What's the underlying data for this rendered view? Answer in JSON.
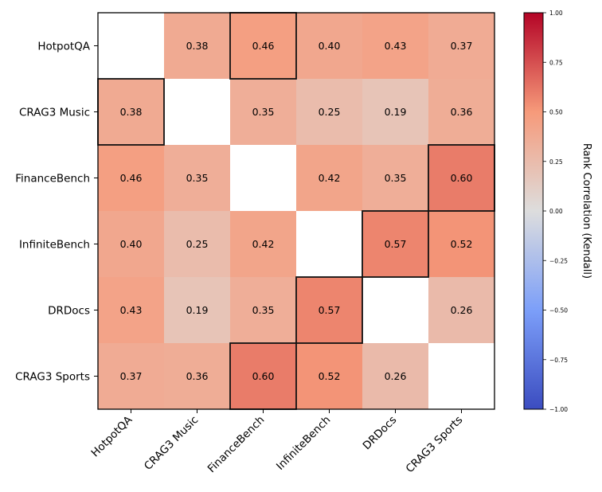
{
  "chart_data": {
    "type": "heatmap",
    "rows": [
      "HotpotQA",
      "CRAG3 Music",
      "FinanceBench",
      "InfiniteBench",
      "DRDocs",
      "CRAG3 Sports"
    ],
    "columns": [
      "HotpotQA",
      "CRAG3 Music",
      "FinanceBench",
      "InfiniteBench",
      "DRDocs",
      "CRAG3 Sports"
    ],
    "values": [
      [
        null,
        0.38,
        0.46,
        0.4,
        0.43,
        0.37
      ],
      [
        0.38,
        null,
        0.35,
        0.25,
        0.19,
        0.36
      ],
      [
        0.46,
        0.35,
        null,
        0.42,
        0.35,
        0.6
      ],
      [
        0.4,
        0.25,
        0.42,
        null,
        0.57,
        0.52
      ],
      [
        0.43,
        0.19,
        0.35,
        0.57,
        null,
        0.26
      ],
      [
        0.37,
        0.36,
        0.6,
        0.52,
        0.26,
        null
      ]
    ],
    "value_labels": [
      [
        "",
        "0.38",
        "0.46",
        "0.40",
        "0.43",
        "0.37"
      ],
      [
        "0.38",
        "",
        "0.35",
        "0.25",
        "0.19",
        "0.36"
      ],
      [
        "0.46",
        "0.35",
        "",
        "0.42",
        "0.35",
        "0.60"
      ],
      [
        "0.40",
        "0.25",
        "0.42",
        "",
        "0.57",
        "0.52"
      ],
      [
        "0.43",
        "0.19",
        "0.35",
        "0.57",
        "",
        "0.26"
      ],
      [
        "0.37",
        "0.36",
        "0.60",
        "0.52",
        "0.26",
        ""
      ]
    ],
    "highlighted_cells": [
      [
        0,
        2
      ],
      [
        1,
        0
      ],
      [
        2,
        5
      ],
      [
        3,
        4
      ],
      [
        4,
        3
      ],
      [
        5,
        2
      ]
    ],
    "colormap": "coolwarm",
    "vmin": -1.0,
    "vmax": 1.0,
    "colorbar": {
      "label": "Rank Correlation (Kendall)",
      "ticks": [
        1.0,
        0.75,
        0.5,
        0.25,
        0.0,
        -0.25,
        -0.5,
        -0.75,
        -1.0
      ],
      "tick_labels": [
        "1.00",
        "0.75",
        "0.50",
        "0.25",
        "0.00",
        "−0.25",
        "−0.50",
        "−0.75",
        "−1.00"
      ],
      "position": "right"
    }
  }
}
